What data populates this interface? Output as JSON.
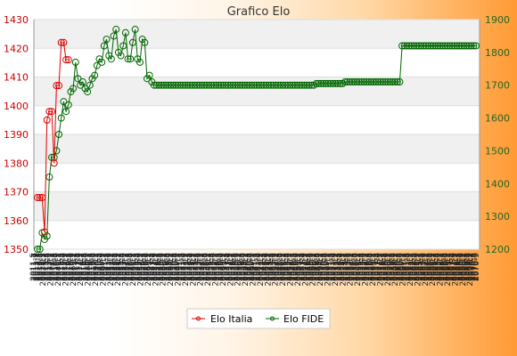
{
  "chart_data": {
    "type": "line",
    "title": "Grafico Elo",
    "legend_position": "bottom",
    "y_left": {
      "min": 1350,
      "max": 1430,
      "ticks": [
        1350,
        1360,
        1370,
        1380,
        1390,
        1400,
        1410,
        1420,
        1430
      ],
      "color": "#cc0000"
    },
    "y_right": {
      "min": 1200,
      "max": 1900,
      "ticks": [
        1200,
        1300,
        1400,
        1500,
        1600,
        1700,
        1800,
        1900
      ],
      "color": "#226622"
    },
    "grid": true,
    "x_tick_labels": [
      "2011-5",
      "2011-7",
      "2011-9",
      "2012-1",
      "2012-3",
      "2012-5",
      "2012-7",
      "2012-9",
      "2012-11",
      "2013-1",
      "2013-3",
      "2013-5",
      "2013-7",
      "2013-9",
      "2013-11",
      "2014-1",
      "2014-3",
      "2014-5",
      "2014-7",
      "2014-9",
      "2014-11",
      "2015-1",
      "2015-3",
      "2015-5",
      "2015-7",
      "2015-9",
      "2015-11",
      "2016-1",
      "2016-3",
      "2016-5",
      "2016-7",
      "2016-9",
      "2016-11",
      "2017-1",
      "2017-3",
      "2017-5",
      "2017-7",
      "2017-9",
      "2017-11",
      "2018-1",
      "2018-3",
      "2018-5",
      "2018-7",
      "2018-9",
      "2018-11",
      "2019-1",
      "2019-3",
      "2019-5",
      "2019-7",
      "2019-9",
      "2019-11",
      "2020-1",
      "2020-3",
      "2020-5",
      "2020-7",
      "2020-9",
      "2020-11",
      "2021-1",
      "2021-3",
      "2021-5",
      "2021-7",
      "2021-9",
      "2021-11",
      "2022-1",
      "2022-3",
      "2022-5",
      "2022-7",
      "2022-9",
      "2022-11",
      "2023-1",
      "2023-3",
      "2023-5",
      "2023-7",
      "2023-9",
      "2023-11",
      "2024-1",
      "2024-3",
      "2024-5",
      "2024-7",
      "2024-9",
      "2024-11",
      "2025-1",
      "2025-3",
      "2025-5",
      "2025-7",
      "2025-9",
      "2025-11",
      "2026-1",
      "2026-3",
      "2026-5",
      "2026-7",
      "2026-9",
      "2026-11",
      "2027-1",
      "2027-3",
      "2027-5",
      "2027-7",
      "2027-9",
      "2027-11",
      "2028-1",
      "2028-3",
      "2028-5",
      "2028-7",
      "2028-9",
      "2028-11",
      "2029-1",
      "2029-3",
      "2029-5",
      "2029-7",
      "2029-9",
      "2029-11",
      "2030-1",
      "2030-3",
      "2030-5",
      "2030-7",
      "2030-9",
      "2030-11",
      "2031-1",
      "2031-3",
      "2031-5",
      "2031-7",
      "2031-9",
      "2031-11",
      "2032-1",
      "2032-3",
      "2032-5",
      "2032-7",
      "2032-9",
      "2032-11",
      "2033-1",
      "2033-3",
      "2033-5",
      "2033-7",
      "2033-9",
      "2033-11",
      "2034-1",
      "2034-3",
      "2034-5",
      "2034-7",
      "2034-9",
      "2034-11",
      "2035-1",
      "2035-3",
      "2035-5",
      "2035-7",
      "2035-9",
      "2035-11",
      "2036-1",
      "2036-3",
      "2036-5",
      "2036-7",
      "2036-9",
      "2036-11",
      "2037-1",
      "2037-3",
      "2037-5",
      "2037-7",
      "2037-9",
      "2037-11",
      "2038-1",
      "2038-3",
      "2038-5",
      "2038-7",
      "2038-9",
      "2038-11",
      "2039-1",
      "2039-3",
      "2039-5",
      "2039-7",
      "2039-9",
      "2039-11",
      "2040-1",
      "2040-3",
      "2040-5",
      "2040-7",
      "2040-9",
      "2040-11",
      "2041-1",
      "2041-3",
      "2041-5",
      "2041-7",
      "2041-9",
      "2041-11",
      "2042-1",
      "2042-3",
      "2042-5",
      "2042-7",
      "2042-9",
      "2042-11",
      "2043-1",
      "2043-3",
      "2043-5",
      "2043-7",
      "2043-9",
      "2043-11",
      "2044-1",
      "2044-3",
      "2044-5",
      "2044-7",
      "2044-9",
      "2044-11",
      "2045-1",
      "2045-3",
      "2045-5",
      "2045-7",
      "2045-9",
      "2045-11",
      "2046-1",
      "2046-3",
      "2046-5",
      "2046-7",
      "2046-9",
      "2046-11",
      "2047-1",
      "2047-3",
      "2047-5",
      "2047-7",
      "2047-9",
      "2047-11",
      "2048-1",
      "2048-3",
      "2048-5",
      "2048-7",
      "2048-9",
      "2048-11",
      "2049-1",
      "2049-3",
      "2049-5",
      "2049-7",
      "2049-9",
      "2049-11",
      "2050-1",
      "2050-3",
      "2050-5",
      "2050-7",
      "2050-9",
      "2050-11",
      "2051-1",
      "2051-3",
      "2051-5",
      "2051-7",
      "2051-9",
      "2051-11",
      "2052-1",
      "2052-3",
      "2052-5",
      "2052-7",
      "2052-9",
      "2052-11",
      "2053-1",
      "2053-3",
      "2053-5",
      "2053-7",
      "2053-9",
      "2053-11",
      "2054-1",
      "2054-3",
      "2054-5",
      "2054-7",
      "2054-9",
      "2054-11",
      "2055-1",
      "2055-3",
      "2055-5",
      "2055-7",
      "2055-9",
      "2055-11",
      "2056-1",
      "2056-3",
      "2056-5",
      "2056-7",
      "2056-9",
      "2056-11",
      "2057-1",
      "2057-3",
      "2057-5",
      "2057-7",
      "2057-9",
      "2057-11",
      "2058-1",
      "2058-3",
      "2058-5",
      "2058-7",
      "2058-9",
      "2058-11",
      "2059-1",
      "2059-3",
      "2059-5",
      "2059-7",
      "2059-9",
      "2059-11",
      "2060-1",
      "2060-3",
      "2060-5",
      "2060-7",
      "2060-9",
      "2060-11",
      "2061-1",
      "2061-3",
      "2061-5",
      "2061-7",
      "2061-9",
      "2061-11",
      "2062-1",
      "2062-3",
      "2062-5",
      "2062-7",
      "2062-9",
      "2062-11",
      "2063-1",
      "2063-3",
      "2063-5",
      "2063-7",
      "2063-9",
      "2063-11",
      "2064-1",
      "2064-3",
      "2064-5",
      "2064-7",
      "2064-9",
      "2064-11",
      "2065-1",
      "2065-3",
      "2065-5",
      "2065-7",
      "2065-9",
      "2065-11",
      "2066-1",
      "2066-3",
      "2066-5",
      "2066-7",
      "2066-9",
      "2066-11",
      "2067-1",
      "2067-3",
      "2067-5",
      "2067-7",
      "2067-9",
      "2067-11",
      "2068-1",
      "2068-3",
      "2068-5",
      "2068-7",
      "2068-9",
      "2068-11",
      "2069-1",
      "2069-3",
      "2069-5",
      "2069-7",
      "2069-9",
      "2069-11",
      "2070-1",
      "2070-3",
      "2070-5",
      "2070-7",
      "2070-9",
      "2070-11"
    ],
    "series": [
      {
        "name": "Elo Italia",
        "axis": "left",
        "color": "#dd0000",
        "values": [
          1368,
          1368,
          1368,
          1356,
          1395,
          1398,
          1398,
          1380,
          1407,
          1407,
          1422,
          1422,
          1416,
          1416
        ]
      },
      {
        "name": "Elo FIDE",
        "axis": "right",
        "color": "#006600",
        "values": [
          1200,
          1200,
          1250,
          1230,
          1240,
          1420,
          1480,
          1480,
          1500,
          1550,
          1600,
          1650,
          1620,
          1640,
          1680,
          1690,
          1770,
          1720,
          1700,
          1710,
          1690,
          1680,
          1700,
          1720,
          1730,
          1760,
          1780,
          1770,
          1820,
          1840,
          1790,
          1780,
          1850,
          1870,
          1800,
          1790,
          1820,
          1860,
          1780,
          1780,
          1830,
          1870,
          1780,
          1770,
          1840,
          1830,
          1720,
          1730,
          1710,
          1700,
          1700,
          1700,
          1700,
          1700,
          1700,
          1700,
          1700,
          1700,
          1700,
          1700,
          1700,
          1700,
          1700,
          1700,
          1700,
          1700,
          1700,
          1700,
          1700,
          1700,
          1700,
          1700,
          1700,
          1700,
          1700,
          1700,
          1700,
          1700,
          1700,
          1700,
          1700,
          1700,
          1700,
          1700,
          1700,
          1700,
          1700,
          1700,
          1700,
          1700,
          1700,
          1700,
          1700,
          1700,
          1700,
          1700,
          1700,
          1700,
          1700,
          1700,
          1700,
          1700,
          1700,
          1700,
          1700,
          1700,
          1700,
          1700,
          1700,
          1700,
          1700,
          1700,
          1700,
          1700,
          1700,
          1700,
          1700,
          1705,
          1705,
          1705,
          1705,
          1705,
          1705,
          1705,
          1705,
          1705,
          1705,
          1705,
          1705,
          1710,
          1710,
          1710,
          1710,
          1710,
          1710,
          1710,
          1710,
          1710,
          1710,
          1710,
          1710,
          1710,
          1710,
          1710,
          1710,
          1710,
          1710,
          1710,
          1710,
          1710,
          1710,
          1710,
          1710,
          1820,
          1820,
          1820,
          1820,
          1820,
          1820,
          1820,
          1820,
          1820,
          1820,
          1820,
          1820,
          1820,
          1820,
          1820,
          1820,
          1820,
          1820,
          1820,
          1820,
          1820,
          1820,
          1820,
          1820,
          1820,
          1820,
          1820,
          1820,
          1820,
          1820,
          1820,
          1820
        ]
      }
    ]
  }
}
